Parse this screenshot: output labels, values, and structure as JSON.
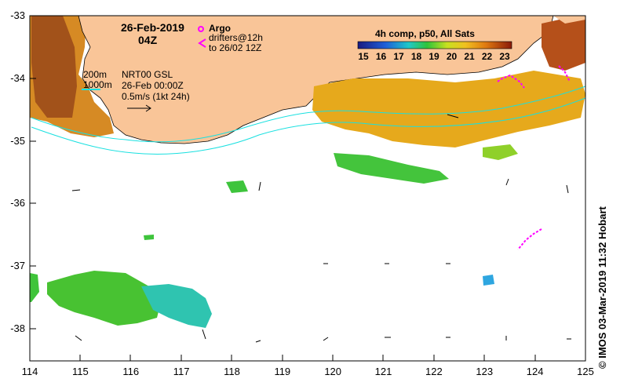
{
  "map": {
    "date_line": "26-Feb-2019",
    "time_line": "04Z",
    "argo_label": "Argo",
    "drifters_line1": "drifters@12h",
    "drifters_line2": "to 26/02 12Z",
    "contour_200": "200m",
    "contour_1000": "1000m",
    "nrt_line1": "NRT00 GSL",
    "nrt_line2": "26-Feb 00:00Z",
    "nrt_line3": "0.5m/s (1kt 24h)",
    "colorbar_title": "4h comp, p50, All Sats",
    "colorbar_ticks": [
      "15",
      "16",
      "17",
      "18",
      "19",
      "20",
      "21",
      "22",
      "23"
    ],
    "credit": "IMOS 03-Mar-2019 11:32 Hobart",
    "copyright_symbol": "©",
    "lat_ticks": [
      "-33",
      "-34",
      "-35",
      "-36",
      "-37",
      "-38"
    ],
    "lon_ticks": [
      "114",
      "115",
      "116",
      "117",
      "118",
      "119",
      "120",
      "121",
      "122",
      "123",
      "124",
      "125"
    ],
    "colors": {
      "land": "#f7c595",
      "sst_warm": "#d98a1a",
      "sst_hot": "#9b3a10",
      "sst_green": "#3fc43f",
      "sst_cyan": "#26c4c4",
      "argo": "#ff00ff",
      "contour": "#19e0e0"
    }
  }
}
